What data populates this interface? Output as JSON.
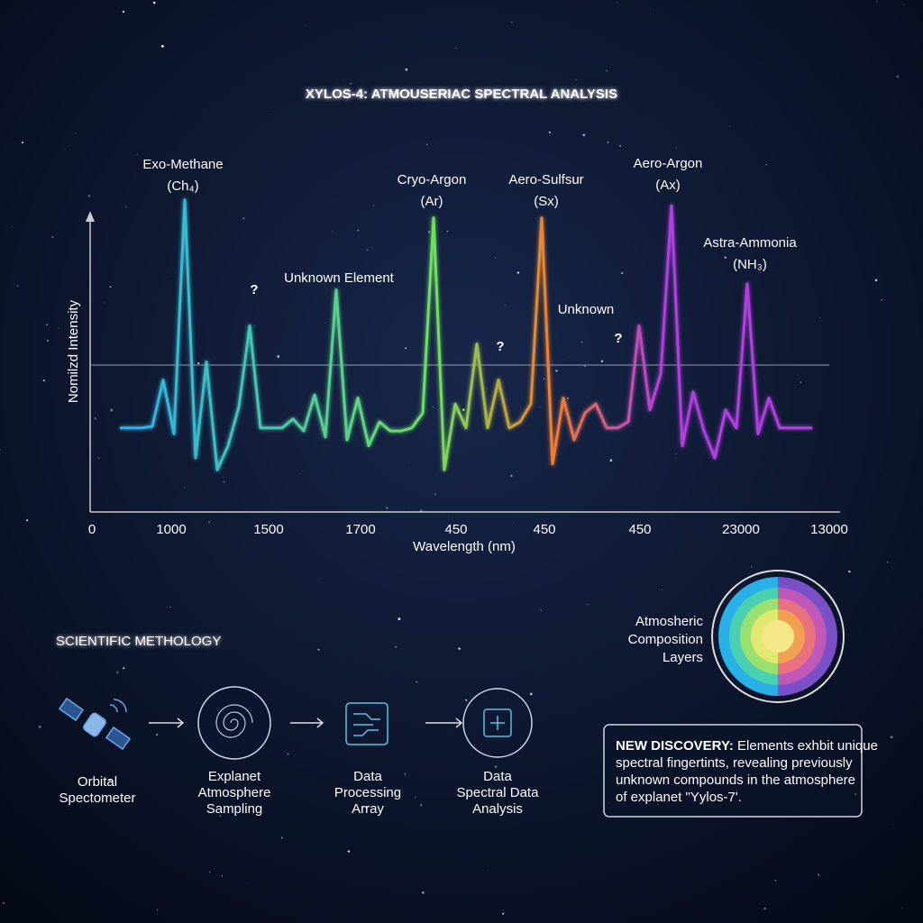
{
  "chart_data": {
    "type": "line",
    "title": "XYLOS-4: ATMOUSERIAC SPECTRAL ANALYSIS",
    "ylabel": "Nomilzd Intensity",
    "xlabel": "Wavelength (nm)",
    "xtick_labels": [
      "0",
      "1000",
      "1500",
      "1700",
      "450",
      "450",
      "450",
      "23000",
      "13000"
    ],
    "ylim": [
      0,
      100
    ],
    "colors": [
      "#2ab0f0",
      "#6ee060",
      "#f08030",
      "#b040e0"
    ],
    "values": [
      28,
      28,
      28,
      28.5,
      44,
      26,
      104,
      18,
      50,
      14,
      22,
      35,
      62,
      28,
      28,
      28,
      31,
      27,
      39,
      25,
      74,
      24,
      38,
      22,
      30,
      27,
      27,
      28,
      33,
      98,
      14,
      36,
      28,
      56,
      28,
      44,
      28,
      30,
      36,
      98,
      16,
      38,
      24,
      33,
      36,
      28,
      28,
      30,
      62,
      34,
      46,
      102,
      22,
      40,
      27,
      18,
      34,
      28,
      76,
      26,
      38,
      28,
      28,
      28,
      28
    ],
    "annotations": [
      {
        "text": "Exo-Methane",
        "sub": "(Ch₄)",
        "color": "#35b8f0"
      },
      {
        "text": "?",
        "color": "#4ab0f0"
      },
      {
        "text": "Unknown Element",
        "color": "#ffffff"
      },
      {
        "text": "Cryo-Argon",
        "sub": "(Ar)",
        "color": "#7dd84a"
      },
      {
        "text": "?",
        "color": "#f0b030"
      },
      {
        "text": "Aero-Sulfsur",
        "sub": "(Sx)",
        "color": "#f08a30"
      },
      {
        "text": "Unknown",
        "color": "#ffffff"
      },
      {
        "text": "?",
        "color": "#b050e0"
      },
      {
        "text": "Aero-Argon",
        "sub": "(Ax)",
        "color": "#c050e8"
      },
      {
        "text": "Astra-Ammonia",
        "sub": "(NH₃)",
        "color": "#4aa8f0"
      }
    ]
  },
  "method": {
    "title": "SCIENTIFIC METHOLOGY",
    "steps": [
      {
        "lines": [
          "Orbital",
          "Spectometer"
        ]
      },
      {
        "lines": [
          "Explanet",
          "Atmosphere",
          "Sampling"
        ]
      },
      {
        "lines": [
          "Data",
          "Processing",
          "Array"
        ]
      },
      {
        "lines": [
          "Data",
          "Spectral Data",
          "Analysis"
        ]
      }
    ]
  },
  "layers": {
    "lines": [
      "Atmosheric",
      "Composition",
      "Layers"
    ]
  },
  "discovery": {
    "lead": "NEW DISCOVERY:",
    "lines": [
      " Elements exhbit unique",
      "spectral fingertints, revealing previously",
      "unknown compounds in the atmosphere",
      "of   explanet \"Yylos-7'."
    ]
  }
}
